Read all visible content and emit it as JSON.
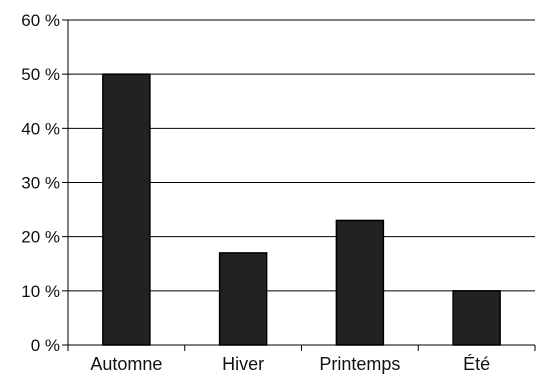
{
  "chart_data": {
    "type": "bar",
    "categories": [
      "Automne",
      "Hiver",
      "Printemps",
      "Été"
    ],
    "values": [
      50,
      17,
      23,
      10
    ],
    "unit": "%",
    "ylim": [
      0,
      60
    ],
    "yticks": [
      0,
      10,
      20,
      30,
      40,
      50,
      60
    ],
    "ytick_labels": [
      "0 %",
      "10 %",
      "20 %",
      "30 %",
      "40 %",
      "50 %",
      "60 %"
    ],
    "title": "",
    "xlabel": "",
    "ylabel": "",
    "grid": true,
    "legend": false
  },
  "colors": {
    "bar_fill": "#222222",
    "bar_stroke": "#000000",
    "grid": "#000000",
    "axis": "#000000",
    "background": "#ffffff"
  }
}
